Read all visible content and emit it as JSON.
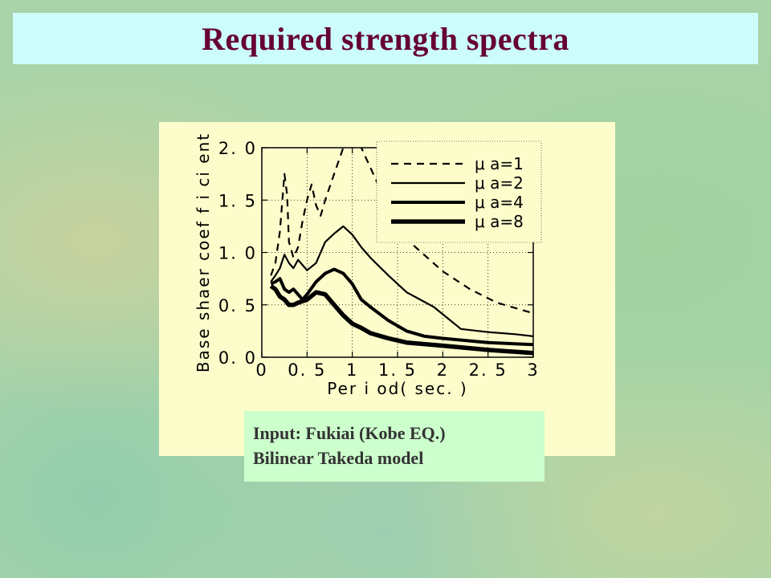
{
  "title": "Required strength spectra",
  "info": {
    "line1": "Input: Fukiai (Kobe EQ.)",
    "line2": "Bilinear Takeda model"
  },
  "colors": {
    "title_text": "#660033",
    "title_bg": "#ccfcfc",
    "panel_bg": "#fdfdcc",
    "info_bg": "#ccffcc",
    "line": "#000000"
  },
  "chart_data": {
    "type": "line",
    "title": "",
    "xlabel": "Per i od( sec. )",
    "ylabel": "Base shaer  coef f i ci ent",
    "xlim": [
      0,
      3
    ],
    "ylim": [
      0,
      2
    ],
    "x_ticks": [
      0,
      0.5,
      1,
      1.5,
      2,
      2.5,
      3
    ],
    "x_tick_labels": [
      "0",
      "0. 5",
      "1",
      "1. 5",
      "2",
      "2. 5",
      "3"
    ],
    "y_ticks": [
      0,
      0.5,
      1,
      1.5,
      2
    ],
    "y_tick_labels": [
      "0. 0",
      "0. 5",
      "1. 0",
      "1. 5",
      "2. 0"
    ],
    "grid": true,
    "legend_position": "top-right",
    "series": [
      {
        "name": "μ a=1",
        "style": "dashed",
        "x": [
          0.1,
          0.15,
          0.2,
          0.25,
          0.28,
          0.3,
          0.35,
          0.4,
          0.45,
          0.5,
          0.55,
          0.6,
          0.65,
          0.7,
          0.8,
          0.9,
          1.0,
          1.1,
          1.3,
          1.5,
          1.7,
          2.0,
          2.3,
          2.6,
          3.0
        ],
        "y": [
          0.78,
          0.9,
          1.2,
          1.75,
          1.55,
          1.1,
          0.95,
          1.05,
          1.3,
          1.5,
          1.65,
          1.45,
          1.35,
          1.5,
          1.75,
          2.0,
          2.05,
          2.0,
          1.62,
          1.22,
          1.05,
          0.82,
          0.65,
          0.52,
          0.42
        ]
      },
      {
        "name": "μ a=2",
        "style": "solid",
        "x": [
          0.1,
          0.15,
          0.2,
          0.25,
          0.3,
          0.35,
          0.4,
          0.5,
          0.6,
          0.7,
          0.8,
          0.9,
          1.0,
          1.1,
          1.2,
          1.4,
          1.6,
          1.9,
          2.2,
          2.5,
          2.8,
          3.0
        ],
        "y": [
          0.72,
          0.78,
          0.85,
          0.98,
          0.9,
          0.85,
          0.93,
          0.83,
          0.9,
          1.1,
          1.18,
          1.25,
          1.17,
          1.05,
          0.95,
          0.78,
          0.62,
          0.48,
          0.27,
          0.24,
          0.22,
          0.2
        ]
      },
      {
        "name": "μ a=4",
        "style": "bold",
        "x": [
          0.1,
          0.15,
          0.2,
          0.25,
          0.3,
          0.35,
          0.4,
          0.45,
          0.5,
          0.6,
          0.7,
          0.8,
          0.9,
          1.0,
          1.1,
          1.2,
          1.4,
          1.6,
          1.8,
          2.0,
          2.5,
          3.0
        ],
        "y": [
          0.7,
          0.72,
          0.75,
          0.65,
          0.62,
          0.65,
          0.6,
          0.55,
          0.6,
          0.72,
          0.8,
          0.84,
          0.8,
          0.7,
          0.55,
          0.48,
          0.35,
          0.25,
          0.2,
          0.18,
          0.14,
          0.12
        ]
      },
      {
        "name": "μ a=8",
        "style": "bolder",
        "x": [
          0.1,
          0.15,
          0.2,
          0.25,
          0.3,
          0.35,
          0.4,
          0.5,
          0.6,
          0.7,
          0.8,
          0.9,
          1.0,
          1.1,
          1.2,
          1.4,
          1.6,
          2.0,
          2.5,
          3.0
        ],
        "y": [
          0.68,
          0.65,
          0.58,
          0.55,
          0.5,
          0.5,
          0.52,
          0.55,
          0.62,
          0.6,
          0.5,
          0.4,
          0.32,
          0.28,
          0.23,
          0.18,
          0.14,
          0.11,
          0.07,
          0.04
        ]
      }
    ]
  }
}
